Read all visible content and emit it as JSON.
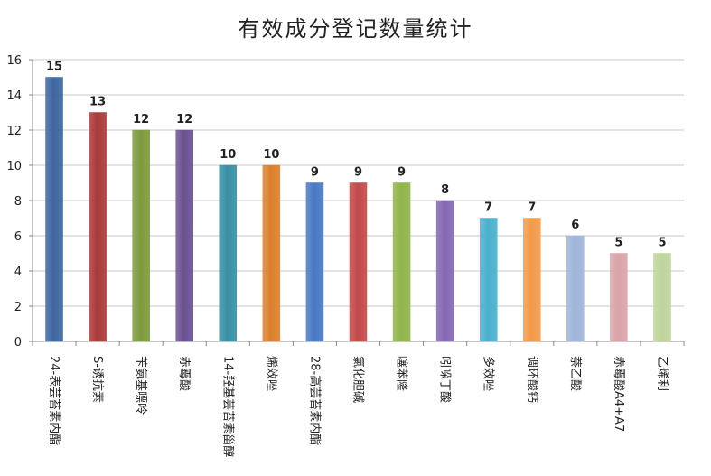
{
  "chart_data": {
    "type": "bar",
    "title": "有效成分登记数量统计",
    "xlabel": "",
    "ylabel": "",
    "ylim": [
      0,
      16
    ],
    "yticks": [
      0,
      2,
      4,
      6,
      8,
      10,
      12,
      14,
      16
    ],
    "grid": true,
    "legend": "none",
    "categories": [
      "24-表芸苔素内酯",
      "S-诱抗素",
      "苄氨基嘌呤",
      "赤霉酸",
      "14-羟基芸苔素甾醇",
      "烯效唑",
      "28-高芸苔素内酯",
      "氯化胆碱",
      "噻苯隆",
      "吲哚丁酸",
      "多效唑",
      "调环酸钙",
      "萘乙酸",
      "赤霉酸A4+A7",
      "乙烯利"
    ],
    "values": [
      15,
      13,
      12,
      12,
      10,
      10,
      9,
      9,
      9,
      8,
      7,
      7,
      6,
      5,
      5
    ],
    "colors": [
      "#3d66a0",
      "#a83a3a",
      "#7c9a3e",
      "#6a5190",
      "#3a8ea4",
      "#d9802e",
      "#4a78c0",
      "#c04a4a",
      "#91b44a",
      "#8468b0",
      "#4ab0cc",
      "#f4994a",
      "#9fb5d8",
      "#d9a3a8",
      "#bed49c"
    ]
  }
}
